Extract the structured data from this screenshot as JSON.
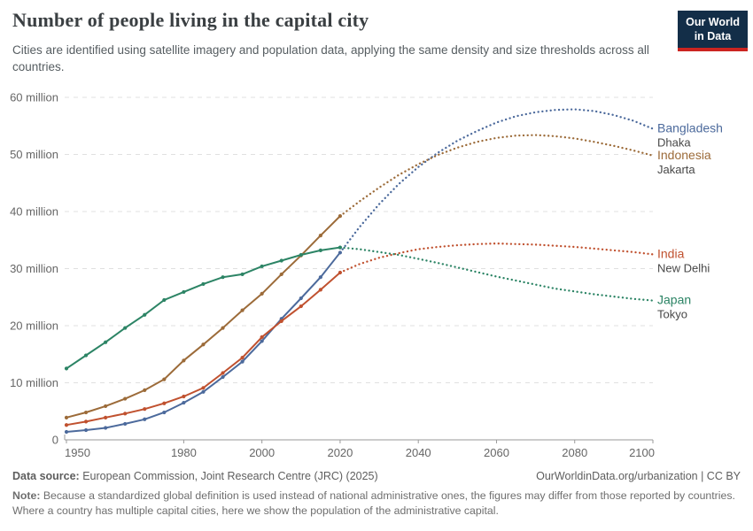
{
  "header": {
    "title": "Number of people living in the capital city",
    "subtitle": "Cities are identified using satellite imagery and population data, applying the same density and size thresholds across all countries.",
    "logo_line1": "Our World",
    "logo_line2": "in Data"
  },
  "footer": {
    "source_label": "Data source:",
    "source_text": " European Commission, Joint Research Centre (JRC) (2025)",
    "link_text": "OurWorldinData.org/urbanization | CC BY",
    "note_label": "Note:",
    "note_text": " Because a standardized global definition is used instead of national administrative ones, the figures may differ from those reported by countries. Where a country has multiple capital cities, here we show the population of the administrative capital."
  },
  "chart_data": {
    "type": "line",
    "title": "Number of people living in the capital city",
    "xlabel": "",
    "ylabel": "",
    "unit": "million people",
    "grid": true,
    "legend_position": "right-of-line-ends",
    "projection_style": "dotted",
    "x_range": [
      1950,
      2100
    ],
    "ylim": [
      0,
      60
    ],
    "x_ticks": [
      1950,
      1980,
      2000,
      2020,
      2040,
      2060,
      2080,
      2100
    ],
    "y_ticks": [
      {
        "value": 0,
        "label": "0"
      },
      {
        "value": 10,
        "label": "10 million"
      },
      {
        "value": 20,
        "label": "20 million"
      },
      {
        "value": 30,
        "label": "30 million"
      },
      {
        "value": 40,
        "label": "40 million"
      },
      {
        "value": 50,
        "label": "50 million"
      },
      {
        "value": 60,
        "label": "60 million"
      }
    ],
    "observed_years": [
      1950,
      1955,
      1960,
      1965,
      1970,
      1975,
      1980,
      1985,
      1990,
      1995,
      2000,
      2005,
      2010,
      2015,
      2020
    ],
    "projected_years": [
      2020,
      2025,
      2030,
      2035,
      2040,
      2045,
      2050,
      2055,
      2060,
      2065,
      2070,
      2075,
      2080,
      2085,
      2090,
      2095,
      2100
    ],
    "series": [
      {
        "name": "Bangladesh",
        "city": "Dhaka",
        "color": "#4C6A9C",
        "observed": [
          1.4,
          1.7,
          2.1,
          2.8,
          3.6,
          4.8,
          6.5,
          8.4,
          11.0,
          13.7,
          17.3,
          21.2,
          24.8,
          28.5,
          32.8
        ],
        "projected": [
          32.8,
          37.3,
          41.3,
          44.8,
          47.8,
          50.3,
          52.4,
          54.1,
          55.6,
          56.7,
          57.4,
          57.8,
          57.9,
          57.6,
          56.9,
          55.9,
          54.5
        ]
      },
      {
        "name": "Indonesia",
        "city": "Jakarta",
        "color": "#9C6B39",
        "observed": [
          3.9,
          4.8,
          5.9,
          7.2,
          8.7,
          10.6,
          13.9,
          16.7,
          19.6,
          22.7,
          25.6,
          29.0,
          32.3,
          35.8,
          39.2
        ],
        "projected": [
          39.2,
          41.8,
          44.2,
          46.4,
          48.3,
          49.9,
          51.2,
          52.2,
          52.9,
          53.3,
          53.4,
          53.2,
          52.8,
          52.2,
          51.5,
          50.7,
          49.8
        ]
      },
      {
        "name": "India",
        "city": "New Delhi",
        "color": "#C0512F",
        "observed": [
          2.6,
          3.2,
          3.9,
          4.6,
          5.4,
          6.4,
          7.6,
          9.1,
          11.7,
          14.4,
          18.0,
          20.8,
          23.4,
          26.3,
          29.3
        ],
        "projected": [
          29.3,
          30.8,
          31.9,
          32.7,
          33.4,
          33.8,
          34.1,
          34.3,
          34.4,
          34.3,
          34.2,
          34.0,
          33.8,
          33.5,
          33.2,
          32.9,
          32.5
        ]
      },
      {
        "name": "Japan",
        "city": "Tokyo",
        "color": "#2C8465",
        "observed": [
          12.5,
          14.8,
          17.1,
          19.6,
          21.9,
          24.5,
          25.9,
          27.3,
          28.5,
          29.0,
          30.4,
          31.4,
          32.4,
          33.2,
          33.7
        ],
        "projected": [
          33.7,
          33.4,
          32.9,
          32.4,
          31.7,
          31.0,
          30.2,
          29.4,
          28.6,
          27.9,
          27.2,
          26.5,
          26.0,
          25.5,
          25.1,
          24.7,
          24.4
        ]
      }
    ],
    "colors": {
      "grid": "#e0e0e0",
      "axis": "#9a9a9a",
      "tick_text": "#666666",
      "city_label": "#474747"
    }
  }
}
